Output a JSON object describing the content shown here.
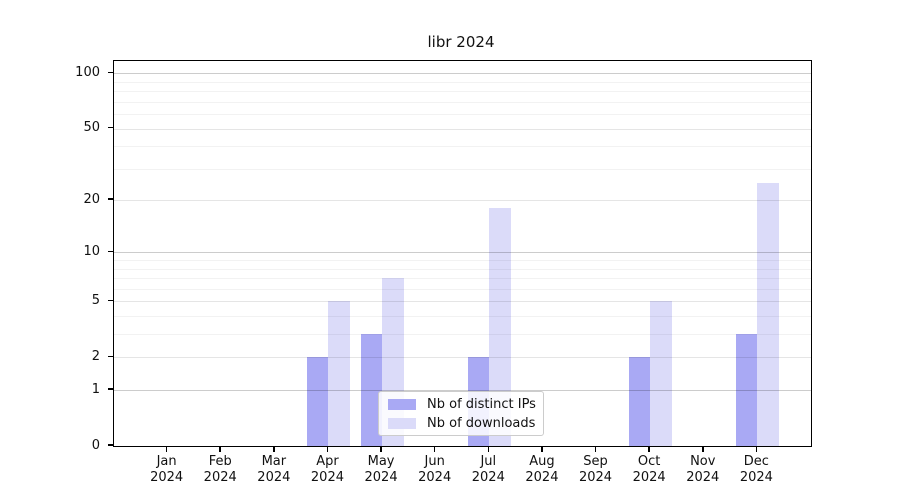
{
  "title": "libr 2024",
  "colors": {
    "ips": "#a9a9f4",
    "downloads": "#dbdbf9",
    "spine": "#000000",
    "grid_decade": "rgba(0,0,0,0.20)",
    "grid_labeled": "rgba(0,0,0,0.10)",
    "grid_minor": "rgba(0,0,0,0.05)"
  },
  "legend": {
    "items": [
      {
        "label": "Nb of distinct IPs",
        "series_key": "ips"
      },
      {
        "label": "Nb of downloads",
        "series_key": "downloads"
      }
    ]
  },
  "chart_data": {
    "type": "bar",
    "title": "libr 2024",
    "xlabel": "",
    "ylabel": "",
    "y_scale": "log10(1+x)",
    "ylim": [
      0,
      117
    ],
    "grid": "on",
    "legend_position": "lower center",
    "categories": [
      {
        "month": "Jan",
        "year": "2024"
      },
      {
        "month": "Feb",
        "year": "2024"
      },
      {
        "month": "Mar",
        "year": "2024"
      },
      {
        "month": "Apr",
        "year": "2024"
      },
      {
        "month": "May",
        "year": "2024"
      },
      {
        "month": "Jun",
        "year": "2024"
      },
      {
        "month": "Jul",
        "year": "2024"
      },
      {
        "month": "Aug",
        "year": "2024"
      },
      {
        "month": "Sep",
        "year": "2024"
      },
      {
        "month": "Oct",
        "year": "2024"
      },
      {
        "month": "Nov",
        "year": "2024"
      },
      {
        "month": "Dec",
        "year": "2024"
      }
    ],
    "series": [
      {
        "name": "Nb of distinct IPs",
        "color_key": "ips",
        "values": [
          0,
          0,
          0,
          2,
          3,
          0,
          2,
          0,
          0,
          2,
          0,
          3
        ]
      },
      {
        "name": "Nb of downloads",
        "color_key": "downloads",
        "values": [
          0,
          0,
          0,
          5,
          7,
          0,
          18,
          0,
          0,
          5,
          0,
          25
        ]
      }
    ],
    "y_ticks": [
      {
        "value": 0,
        "label": "0"
      },
      {
        "value": 1,
        "label": "1"
      },
      {
        "value": 2,
        "label": "2"
      },
      {
        "value": 5,
        "label": "5"
      },
      {
        "value": 10,
        "label": "10"
      },
      {
        "value": 20,
        "label": "20"
      },
      {
        "value": 50,
        "label": "50"
      },
      {
        "value": 100,
        "label": "100"
      }
    ],
    "y_grid_decade": [
      1,
      10,
      100
    ],
    "y_grid_labeled": [
      2,
      5,
      20,
      50
    ],
    "y_grid_minor": [
      3,
      4,
      6,
      7,
      8,
      9,
      30,
      40,
      60,
      70,
      80,
      90
    ]
  }
}
